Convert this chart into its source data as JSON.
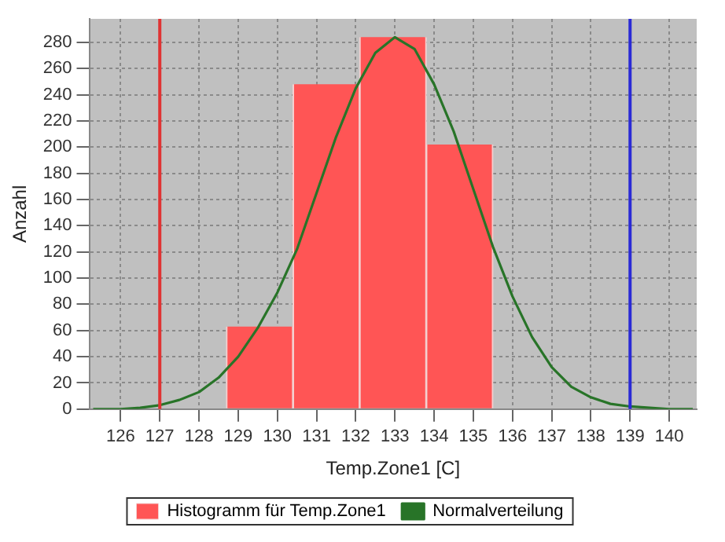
{
  "chart_data": {
    "type": "histogram",
    "xlabel": "Temp.Zone1 [C]",
    "ylabel": "Anzahl",
    "series": [
      {
        "name": "Histogramm für Temp.Zone1",
        "color": "#ff5555",
        "bins": [
          128.7,
          130.4,
          132.1,
          133.8,
          135.5
        ],
        "values": [
          63,
          248,
          284,
          202
        ]
      },
      {
        "name": "Normalverteilung",
        "color": "#287428",
        "type": "line",
        "x": [
          125.3,
          126,
          126.5,
          127,
          127.5,
          128,
          128.5,
          129,
          129.5,
          130,
          130.5,
          131,
          131.5,
          132,
          132.5,
          133,
          133.5,
          134,
          134.5,
          135,
          135.5,
          136,
          136.5,
          137,
          137.5,
          138,
          138.5,
          139,
          139.5,
          140,
          140.6
        ],
        "values": [
          0,
          0,
          1,
          3,
          7,
          13,
          24,
          40,
          62,
          89,
          122,
          165,
          208,
          245,
          272,
          284,
          275,
          248,
          212,
          168,
          124,
          86,
          55,
          32,
          17,
          9,
          4,
          2,
          1,
          0,
          0
        ]
      }
    ],
    "xlim": [
      125.2,
      140.7
    ],
    "xticks": [
      126,
      127,
      128,
      129,
      130,
      131,
      132,
      133,
      134,
      135,
      136,
      137,
      138,
      139,
      140
    ],
    "ylim": [
      0,
      298
    ],
    "yticks": [
      0,
      20,
      40,
      60,
      80,
      100,
      120,
      140,
      160,
      180,
      200,
      220,
      240,
      260,
      280
    ],
    "ref_lines": [
      {
        "axis": "x",
        "value": 127,
        "color": "#e03333"
      },
      {
        "axis": "x",
        "value": 139,
        "color": "#2a2ad6"
      }
    ],
    "grid": true,
    "legend": "bottom",
    "marker": "none",
    "line_style": "solid"
  }
}
